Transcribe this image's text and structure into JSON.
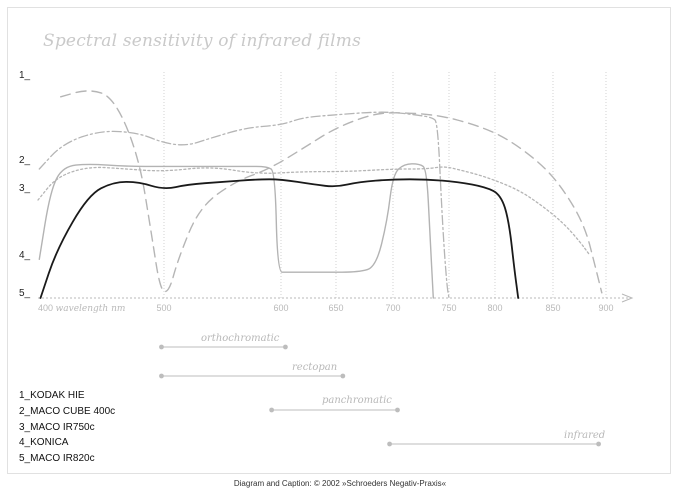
{
  "chart_data": {
    "type": "line",
    "title": "Spectral sensitivity of infrared films",
    "xlabel": "wavelength nm",
    "x_ticks": [
      "400",
      "500",
      "600",
      "650",
      "700",
      "750",
      "800",
      "850",
      "900"
    ],
    "xlim": [
      400,
      900
    ],
    "y_markers": [
      "1_",
      "2_",
      "3_",
      "4_",
      "5_"
    ],
    "series": [
      {
        "name": "1_KODAK HIE",
        "style": "long-dash",
        "color": "#b5b5b5",
        "points": [
          [
            418,
            0.78
          ],
          [
            440,
            0.81
          ],
          [
            460,
            0.78
          ],
          [
            480,
            0.55
          ],
          [
            490,
            0.25
          ],
          [
            497,
            0.03
          ],
          [
            504,
            0.02
          ],
          [
            512,
            0.15
          ],
          [
            530,
            0.35
          ],
          [
            560,
            0.45
          ],
          [
            590,
            0.5
          ],
          [
            620,
            0.58
          ],
          [
            650,
            0.66
          ],
          [
            680,
            0.71
          ],
          [
            700,
            0.72
          ],
          [
            740,
            0.71
          ],
          [
            780,
            0.67
          ],
          [
            810,
            0.62
          ],
          [
            840,
            0.52
          ],
          [
            860,
            0.42
          ],
          [
            880,
            0.28
          ],
          [
            890,
            0.12
          ],
          [
            896,
            0.02
          ]
        ]
      },
      {
        "name": "2_MACO CUBE 400c",
        "style": "dotted",
        "color": "#b5b5b5",
        "points": [
          [
            400,
            0.38
          ],
          [
            415,
            0.47
          ],
          [
            440,
            0.51
          ],
          [
            470,
            0.5
          ],
          [
            500,
            0.49
          ],
          [
            540,
            0.51
          ],
          [
            580,
            0.48
          ],
          [
            620,
            0.49
          ],
          [
            660,
            0.49
          ],
          [
            700,
            0.5
          ],
          [
            730,
            0.5
          ],
          [
            745,
            0.51
          ],
          [
            758,
            0.5
          ],
          [
            790,
            0.47
          ],
          [
            820,
            0.42
          ],
          [
            840,
            0.36
          ],
          [
            860,
            0.29
          ],
          [
            875,
            0.22
          ],
          [
            884,
            0.17
          ]
        ]
      },
      {
        "name": "3_MACO IR750c",
        "style": "dash-dot",
        "color": "#b5b5b5",
        "points": [
          [
            401,
            0.5
          ],
          [
            420,
            0.6
          ],
          [
            450,
            0.65
          ],
          [
            480,
            0.64
          ],
          [
            500,
            0.6
          ],
          [
            520,
            0.59
          ],
          [
            540,
            0.62
          ],
          [
            570,
            0.66
          ],
          [
            600,
            0.67
          ],
          [
            620,
            0.7
          ],
          [
            650,
            0.71
          ],
          [
            680,
            0.72
          ],
          [
            700,
            0.72
          ],
          [
            720,
            0.71
          ],
          [
            735,
            0.7
          ],
          [
            740,
            0.68
          ],
          [
            744,
            0.3
          ],
          [
            748,
            0.05
          ],
          [
            750,
            0.0
          ]
        ]
      },
      {
        "name": "4_KONICA",
        "style": "solid-thin",
        "color": "#b3b3b3",
        "points": [
          [
            401,
            0.15
          ],
          [
            410,
            0.42
          ],
          [
            420,
            0.51
          ],
          [
            440,
            0.52
          ],
          [
            470,
            0.51
          ],
          [
            500,
            0.51
          ],
          [
            530,
            0.51
          ],
          [
            570,
            0.51
          ],
          [
            588,
            0.51
          ],
          [
            595,
            0.49
          ],
          [
            597,
            0.1
          ],
          [
            605,
            0.1
          ],
          [
            640,
            0.1
          ],
          [
            670,
            0.1
          ],
          [
            685,
            0.12
          ],
          [
            695,
            0.3
          ],
          [
            700,
            0.48
          ],
          [
            710,
            0.52
          ],
          [
            724,
            0.52
          ],
          [
            730,
            0.5
          ],
          [
            733,
            0.25
          ],
          [
            736,
            0.0
          ]
        ]
      },
      {
        "name": "5_MACO IR820c",
        "style": "solid-bold",
        "color": "#1a1a1a",
        "points": [
          [
            402,
            0.0
          ],
          [
            415,
            0.19
          ],
          [
            440,
            0.4
          ],
          [
            460,
            0.45
          ],
          [
            480,
            0.45
          ],
          [
            500,
            0.42
          ],
          [
            520,
            0.44
          ],
          [
            550,
            0.45
          ],
          [
            580,
            0.46
          ],
          [
            600,
            0.46
          ],
          [
            630,
            0.44
          ],
          [
            650,
            0.43
          ],
          [
            670,
            0.45
          ],
          [
            700,
            0.46
          ],
          [
            730,
            0.46
          ],
          [
            760,
            0.45
          ],
          [
            790,
            0.43
          ],
          [
            805,
            0.4
          ],
          [
            812,
            0.3
          ],
          [
            817,
            0.1
          ],
          [
            820,
            0.0
          ]
        ]
      }
    ],
    "regions": [
      {
        "label": "orthochromatic",
        "from": 498,
        "to": 604
      },
      {
        "label": "rectopan",
        "from": 498,
        "to": 656
      },
      {
        "label": "panchromatic",
        "from": 592,
        "to": 704
      },
      {
        "label": "infrared",
        "from": 697,
        "to": 893
      }
    ],
    "grid": "vertical-dotted",
    "legend": "bottom-left"
  },
  "legend_items": [
    "1_KODAK HIE",
    "2_MACO CUBE 400c",
    "3_MACO IR750c",
    "4_KONICA",
    "5_MACO IR820c"
  ],
  "caption": "Diagram and Caption: © 2002 »Schroeders Negativ-Praxis«"
}
